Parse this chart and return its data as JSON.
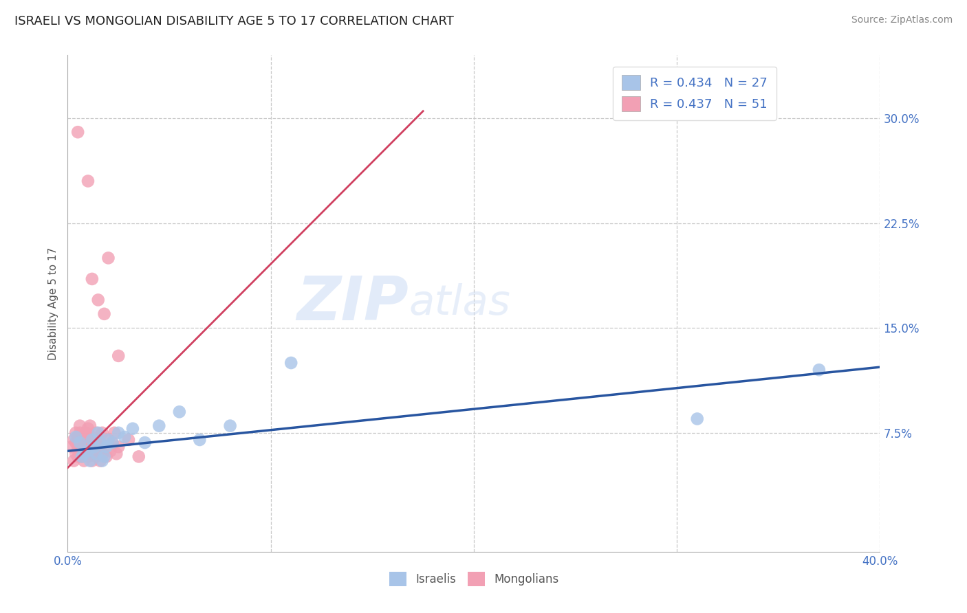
{
  "title": "ISRAELI VS MONGOLIAN DISABILITY AGE 5 TO 17 CORRELATION CHART",
  "source": "Source: ZipAtlas.com",
  "ylabel": "Disability Age 5 to 17",
  "xlim": [
    0.0,
    0.4
  ],
  "ylim": [
    -0.01,
    0.345
  ],
  "xticks": [
    0.0,
    0.1,
    0.2,
    0.3,
    0.4
  ],
  "xtick_labels": [
    "0.0%",
    "",
    "",
    "",
    "40.0%"
  ],
  "yticks": [
    0.075,
    0.15,
    0.225,
    0.3
  ],
  "ytick_labels": [
    "7.5%",
    "15.0%",
    "22.5%",
    "30.0%"
  ],
  "grid_color": "#c8c8c8",
  "background_color": "#ffffff",
  "axis_color": "#4472c4",
  "watermark_zip": "ZIP",
  "watermark_atlas": "atlas",
  "israeli_color": "#a8c4e8",
  "mongolian_color": "#f2a0b4",
  "israeli_line_color": "#2855a0",
  "mongolian_line_color": "#d04060",
  "israeli_scatter_x": [
    0.004,
    0.006,
    0.007,
    0.008,
    0.01,
    0.011,
    0.012,
    0.013,
    0.014,
    0.015,
    0.016,
    0.017,
    0.018,
    0.019,
    0.02,
    0.022,
    0.025,
    0.028,
    0.032,
    0.038,
    0.045,
    0.055,
    0.065,
    0.08,
    0.11,
    0.31,
    0.37
  ],
  "israeli_scatter_y": [
    0.072,
    0.068,
    0.058,
    0.06,
    0.062,
    0.055,
    0.07,
    0.065,
    0.06,
    0.075,
    0.068,
    0.055,
    0.058,
    0.065,
    0.07,
    0.068,
    0.075,
    0.072,
    0.078,
    0.068,
    0.08,
    0.09,
    0.07,
    0.08,
    0.125,
    0.085,
    0.12
  ],
  "mongolian_scatter_x": [
    0.002,
    0.003,
    0.003,
    0.004,
    0.004,
    0.004,
    0.005,
    0.005,
    0.005,
    0.006,
    0.006,
    0.006,
    0.006,
    0.007,
    0.007,
    0.007,
    0.008,
    0.008,
    0.008,
    0.009,
    0.009,
    0.009,
    0.01,
    0.01,
    0.01,
    0.011,
    0.011,
    0.011,
    0.012,
    0.012,
    0.012,
    0.013,
    0.013,
    0.014,
    0.014,
    0.015,
    0.015,
    0.016,
    0.016,
    0.017,
    0.017,
    0.018,
    0.019,
    0.02,
    0.021,
    0.022,
    0.023,
    0.024,
    0.025,
    0.03,
    0.035
  ],
  "mongolian_scatter_y": [
    0.065,
    0.055,
    0.07,
    0.06,
    0.068,
    0.075,
    0.058,
    0.065,
    0.072,
    0.06,
    0.068,
    0.075,
    0.08,
    0.058,
    0.065,
    0.07,
    0.055,
    0.062,
    0.072,
    0.06,
    0.068,
    0.075,
    0.058,
    0.065,
    0.078,
    0.062,
    0.07,
    0.08,
    0.055,
    0.065,
    0.072,
    0.06,
    0.068,
    0.058,
    0.075,
    0.062,
    0.07,
    0.055,
    0.068,
    0.06,
    0.075,
    0.065,
    0.058,
    0.07,
    0.062,
    0.068,
    0.075,
    0.06,
    0.065,
    0.07,
    0.058
  ],
  "mongolian_outliers_x": [
    0.005,
    0.01,
    0.012,
    0.015,
    0.018,
    0.02,
    0.025
  ],
  "mongolian_outliers_y": [
    0.29,
    0.255,
    0.185,
    0.17,
    0.16,
    0.2,
    0.13
  ],
  "israeli_trend_x0": 0.0,
  "israeli_trend_x1": 0.4,
  "israeli_trend_y0": 0.062,
  "israeli_trend_y1": 0.122,
  "mongolian_trend_x0": 0.0,
  "mongolian_trend_x1": 0.175,
  "mongolian_trend_y0": 0.05,
  "mongolian_trend_y1": 0.305,
  "legend_r_israeli": "R = 0.434",
  "legend_n_israeli": "N = 27",
  "legend_r_mongolian": "R = 0.437",
  "legend_n_mongolian": "N = 51"
}
